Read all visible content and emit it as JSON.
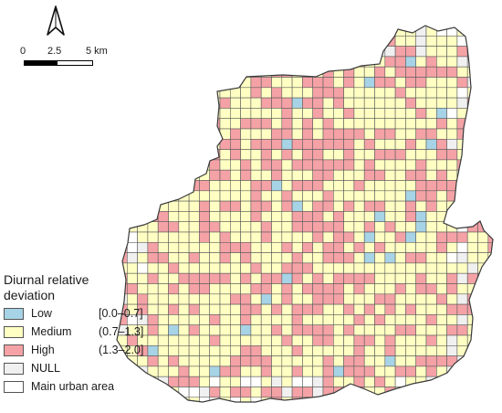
{
  "map": {
    "scale_bar": {
      "labels": [
        "0",
        "2.5",
        "5 km"
      ]
    },
    "legend": {
      "title": [
        "Diurnal relative",
        "deviation"
      ],
      "items": [
        {
          "label": "Low",
          "range": "[0.0–0.7]",
          "color": "#a7d3e6"
        },
        {
          "label": "Medium",
          "range": "(0.7–1.3]",
          "color": "#ffffc3"
        },
        {
          "label": "High",
          "range": "(1.3–2.0]",
          "color": "#f4a2a6"
        },
        {
          "label": "NULL",
          "range": "",
          "color": "#f0f0f0"
        },
        {
          "label": "Main urban area",
          "range": "",
          "color": "#ffffff"
        }
      ]
    },
    "colors": {
      "grid_line": "#5a5a5a",
      "boundary": "#3a3a3a"
    }
  }
}
